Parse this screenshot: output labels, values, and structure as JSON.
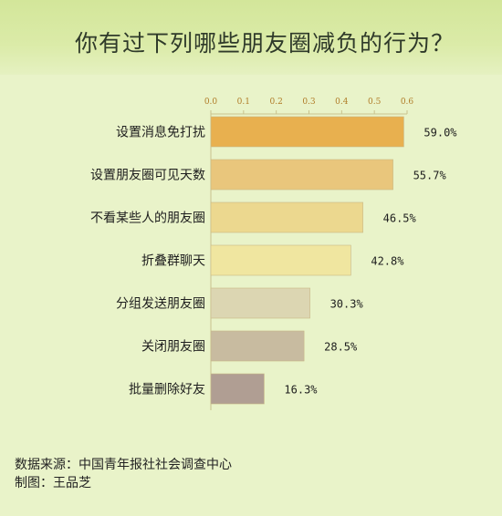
{
  "chart_data": {
    "type": "bar",
    "orientation": "horizontal",
    "title": "你有过下列哪些朋友圈减负的行为？",
    "categories": [
      "设置消息免打扰",
      "设置朋友圈可见天数",
      "不看某些人的朋友圈",
      "折叠群聊天",
      "分组发送朋友圈",
      "关闭朋友圈",
      "批量删除好友"
    ],
    "values": [
      0.59,
      0.557,
      0.465,
      0.428,
      0.303,
      0.285,
      0.163
    ],
    "value_labels": [
      "59.0%",
      "55.7%",
      "46.5%",
      "42.8%",
      "30.3%",
      "28.5%",
      "16.3%"
    ],
    "bar_colors": [
      "#e8b04f",
      "#e9c67c",
      "#ecd88f",
      "#f0e6a0",
      "#dcd6b2",
      "#c8bba0",
      "#b09e93"
    ],
    "x_ticks": [
      "0.0",
      "0.1",
      "0.2",
      "0.3",
      "0.4",
      "0.5",
      "0.6"
    ],
    "xlim": [
      0,
      0.6
    ],
    "x_axis_position": "top",
    "grid": false,
    "legend": "none"
  },
  "footer": {
    "source": "数据来源：中国青年报社社会调查中心",
    "author": "制图：王品芝"
  }
}
